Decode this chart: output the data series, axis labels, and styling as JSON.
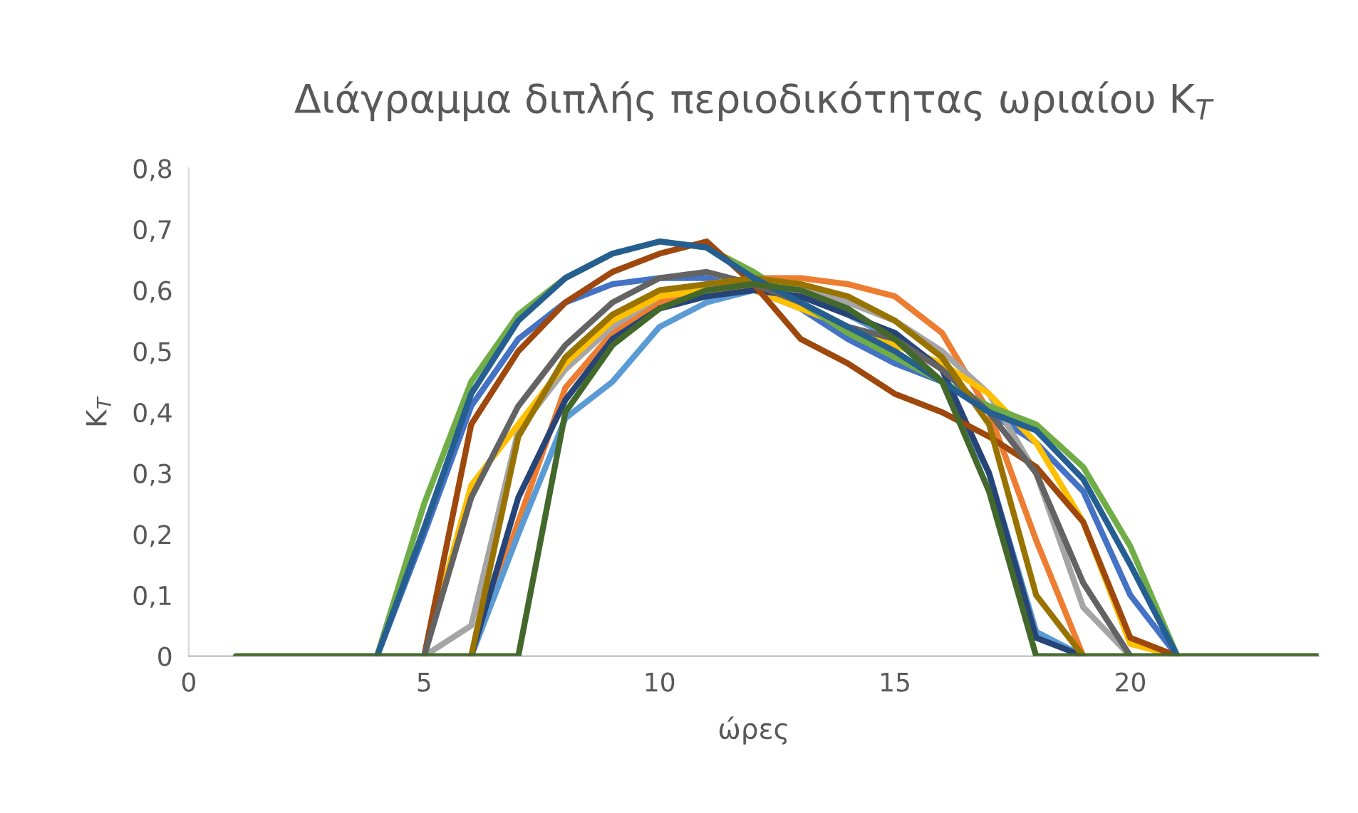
{
  "chart_data": {
    "type": "line",
    "title": "Διάγραμμα διπλής περιοδικότητας ωριαίου K$_{T}$",
    "xlabel": "ώρες",
    "ylabel": "K$_{T}$",
    "x": [
      1,
      2,
      3,
      4,
      5,
      6,
      7,
      8,
      9,
      10,
      11,
      12,
      13,
      14,
      15,
      16,
      17,
      18,
      19,
      20,
      21,
      22,
      23,
      24
    ],
    "xlim": [
      0,
      24
    ],
    "xticks": [
      0,
      5,
      10,
      15,
      20
    ],
    "ylim": [
      0,
      0.8
    ],
    "yticks": [
      {
        "value": 0,
        "label": "0"
      },
      {
        "value": 0.1,
        "label": "0,1"
      },
      {
        "value": 0.2,
        "label": "0,2"
      },
      {
        "value": 0.3,
        "label": "0,3"
      },
      {
        "value": 0.4,
        "label": "0,4"
      },
      {
        "value": 0.5,
        "label": "0,5"
      },
      {
        "value": 0.6,
        "label": "0,6"
      },
      {
        "value": 0.7,
        "label": "0,7"
      },
      {
        "value": 0.8,
        "label": "0,8"
      }
    ],
    "marker": "none",
    "line_style": "solid",
    "series": [
      {
        "color": "#4472c4",
        "values": [
          null,
          null,
          null,
          0,
          0.2,
          0.41,
          0.52,
          0.58,
          0.61,
          0.62,
          0.62,
          0.6,
          0.57,
          0.52,
          0.48,
          0.45,
          0.4,
          0.35,
          0.27,
          0.1,
          0,
          null,
          null,
          null
        ]
      },
      {
        "color": "#ed7d31",
        "values": [
          null,
          null,
          null,
          null,
          null,
          0,
          0.22,
          0.44,
          0.53,
          0.58,
          0.61,
          0.62,
          0.62,
          0.61,
          0.59,
          0.53,
          0.4,
          0.19,
          0,
          null,
          null,
          null,
          null,
          null
        ]
      },
      {
        "color": "#a5a5a5",
        "values": [
          null,
          null,
          null,
          null,
          0,
          0.05,
          0.37,
          0.47,
          0.54,
          0.59,
          0.61,
          0.62,
          0.61,
          0.58,
          0.55,
          0.5,
          0.43,
          0.3,
          0.08,
          0,
          null,
          null,
          null,
          null
        ]
      },
      {
        "color": "#ffc000",
        "values": [
          null,
          null,
          null,
          null,
          0,
          0.28,
          0.38,
          0.48,
          0.55,
          0.59,
          0.6,
          0.6,
          0.57,
          0.54,
          0.51,
          0.48,
          0.43,
          0.35,
          0.22,
          0.02,
          0,
          null,
          null,
          null
        ]
      },
      {
        "color": "#5b9bd5",
        "values": [
          null,
          null,
          null,
          null,
          null,
          0,
          0.2,
          0.39,
          0.45,
          0.54,
          0.58,
          0.6,
          0.59,
          0.56,
          0.52,
          0.45,
          0.3,
          0.04,
          0,
          null,
          null,
          null,
          null,
          null
        ]
      },
      {
        "color": "#70ad47",
        "values": [
          null,
          null,
          null,
          0,
          0.25,
          0.45,
          0.56,
          0.62,
          0.66,
          0.68,
          0.67,
          0.63,
          0.58,
          0.53,
          0.49,
          0.45,
          0.41,
          0.38,
          0.31,
          0.18,
          0,
          null,
          null,
          null
        ]
      },
      {
        "color": "#264478",
        "values": [
          null,
          null,
          null,
          null,
          null,
          0,
          0.26,
          0.42,
          0.52,
          0.57,
          0.59,
          0.6,
          0.59,
          0.56,
          0.53,
          0.47,
          0.3,
          0.03,
          0,
          null,
          null,
          null,
          null,
          null
        ]
      },
      {
        "color": "#9e480e",
        "values": [
          null,
          null,
          null,
          null,
          0,
          0.38,
          0.5,
          0.58,
          0.63,
          0.66,
          0.68,
          0.61,
          0.52,
          0.48,
          0.43,
          0.4,
          0.36,
          0.31,
          0.22,
          0.03,
          0,
          null,
          null,
          null
        ]
      },
      {
        "color": "#636363",
        "values": [
          null,
          null,
          null,
          null,
          0,
          0.26,
          0.41,
          0.51,
          0.58,
          0.62,
          0.63,
          0.61,
          0.58,
          0.54,
          0.52,
          0.47,
          0.4,
          0.3,
          0.12,
          0,
          null,
          null,
          null,
          null
        ]
      },
      {
        "color": "#997300",
        "values": [
          null,
          null,
          null,
          null,
          null,
          0,
          0.36,
          0.49,
          0.56,
          0.6,
          0.61,
          0.62,
          0.61,
          0.59,
          0.55,
          0.49,
          0.38,
          0.1,
          0,
          null,
          null,
          null,
          null,
          null
        ]
      },
      {
        "color": "#255e91",
        "values": [
          null,
          null,
          null,
          0,
          0.21,
          0.43,
          0.55,
          0.62,
          0.66,
          0.68,
          0.67,
          0.62,
          0.58,
          0.54,
          0.5,
          0.45,
          0.4,
          0.37,
          0.29,
          0.15,
          0,
          null,
          null,
          null
        ]
      },
      {
        "color": "#43682b",
        "values": [
          0,
          0,
          0,
          0,
          0,
          0,
          0,
          0.4,
          0.51,
          0.57,
          0.6,
          0.61,
          0.6,
          0.57,
          0.52,
          0.45,
          0.27,
          0,
          0,
          0,
          0,
          0,
          0,
          0
        ]
      }
    ]
  }
}
